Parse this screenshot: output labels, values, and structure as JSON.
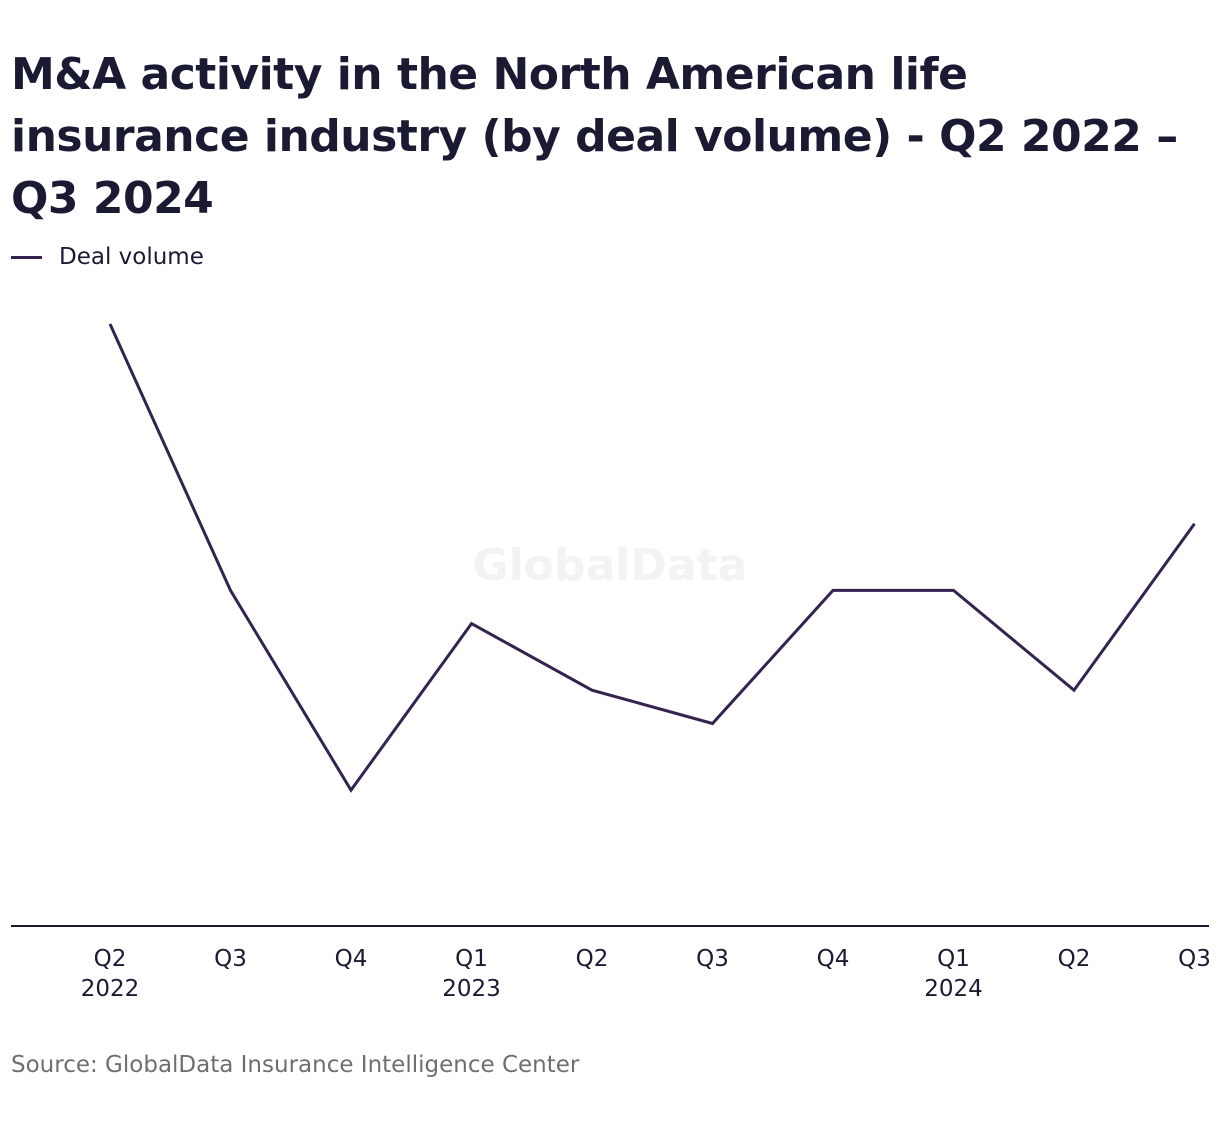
{
  "chart_data": {
    "type": "line",
    "title": "M&A activity in the North American life insurance industry (by deal volume) - Q2 2022 – Q3 2024",
    "categories": [
      {
        "quarter": "Q2",
        "year": "2022"
      },
      {
        "quarter": "Q3",
        "year": ""
      },
      {
        "quarter": "Q4",
        "year": ""
      },
      {
        "quarter": "Q1",
        "year": "2023"
      },
      {
        "quarter": "Q2",
        "year": ""
      },
      {
        "quarter": "Q3",
        "year": ""
      },
      {
        "quarter": "Q4",
        "year": ""
      },
      {
        "quarter": "Q1",
        "year": "2024"
      },
      {
        "quarter": "Q2",
        "year": ""
      },
      {
        "quarter": "Q3",
        "year": ""
      }
    ],
    "series": [
      {
        "name": "Deal volume",
        "color": "#34234f",
        "values": [
          17,
          9,
          3,
          8,
          6,
          5,
          9,
          9,
          6,
          11
        ]
      }
    ],
    "ylim": [
      0,
      17
    ],
    "xlabel": "",
    "ylabel": "",
    "grid": false,
    "legend_position": "top-left",
    "watermark": "GlobalData",
    "source": "Source: GlobalData Insurance Intelligence Center"
  }
}
